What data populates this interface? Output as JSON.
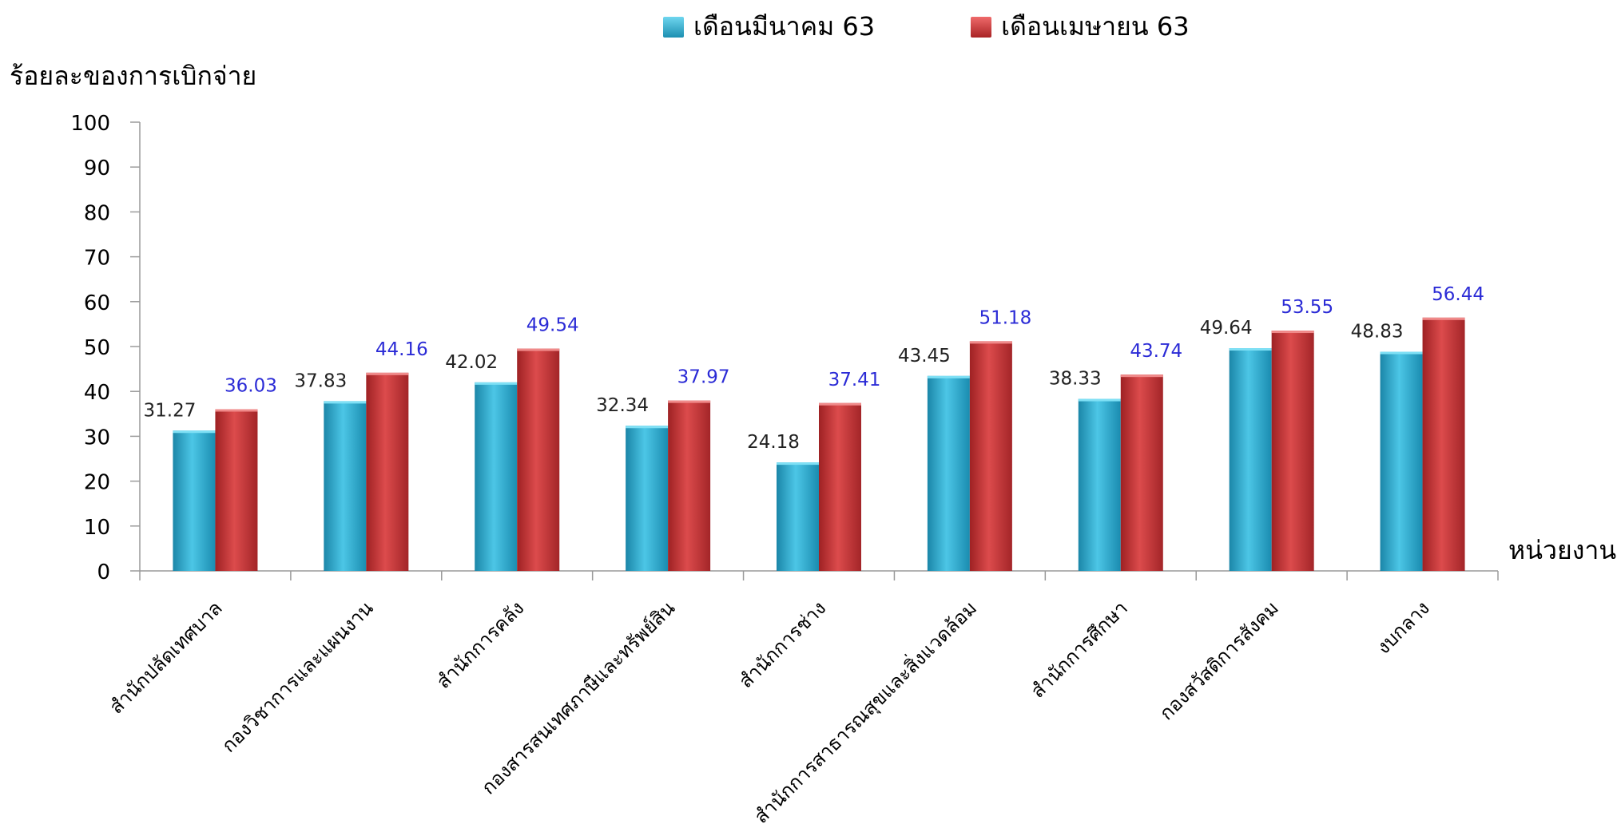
{
  "chart_data": {
    "type": "bar",
    "title": "",
    "ylabel": "ร้อยละของการเบิกจ่าย",
    "xlabel": "หน่วยงาน",
    "ylim": [
      0,
      100
    ],
    "yticks": [
      0,
      10,
      20,
      30,
      40,
      50,
      60,
      70,
      80,
      90,
      100
    ],
    "legend_position": "top",
    "categories": [
      "สำนักปลัดเทศบาล",
      "กองวิชาการและแผนงาน",
      "สำนักการคลัง",
      "กองสารสนเทศภาษีและทรัพย์สิน",
      "สำนักการช่าง",
      "สำนักการสาธารณสุขและสิ่งแวดล้อม",
      "สำนักการศึกษา",
      "กองสวัสดิการสังคม",
      "งบกลาง"
    ],
    "series": [
      {
        "name": "เดือนมีนาคม 63",
        "color": "#2aa6c9",
        "label_color": "#222222",
        "values": [
          31.27,
          37.83,
          42.02,
          32.34,
          24.18,
          43.45,
          38.33,
          49.64,
          48.83
        ]
      },
      {
        "name": "เดือนเมษายน 63",
        "color": "#c8383a",
        "label_color": "#2b2bd6",
        "values": [
          36.03,
          44.16,
          49.54,
          37.97,
          37.41,
          51.18,
          43.74,
          53.55,
          56.44
        ]
      }
    ]
  }
}
